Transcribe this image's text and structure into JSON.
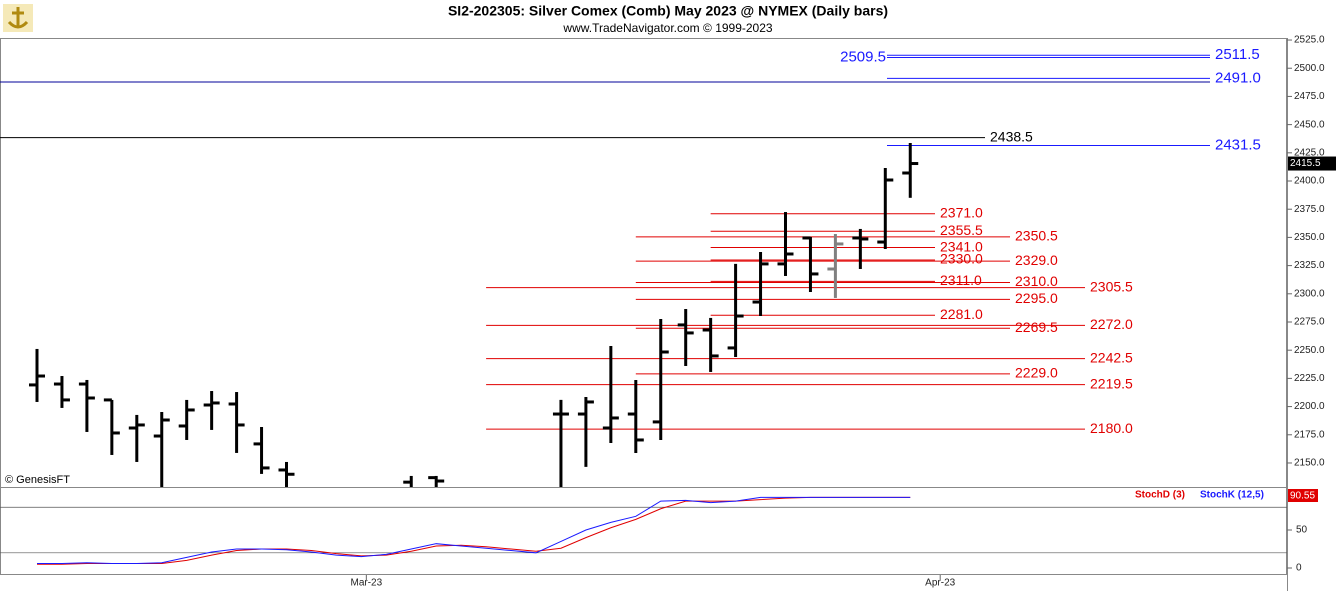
{
  "chart_data": [
    {
      "type": "ohlc",
      "title": "SI2-202305:  Silver Comex (Comb) May 2023 @ NYMEX  (Daily bars)",
      "subtitle": "www.TradeNavigator.com © 1999-2023",
      "annotations": [
        "© GenesisFT"
      ],
      "x": [
        0,
        1,
        2,
        3,
        4,
        5,
        6,
        7,
        8,
        9,
        10,
        15,
        16,
        21,
        22,
        23,
        24,
        25,
        26,
        27,
        28,
        29,
        30,
        31,
        32,
        33,
        34,
        35
      ],
      "open": [
        2219.2,
        2220.0,
        2220.0,
        2205.9,
        2181.0,
        2173.9,
        2182.8,
        2201.4,
        2202.3,
        2166.9,
        2143.8,
        2133,
        2137,
        2193.4,
        2193.4,
        2181.0,
        2193.4,
        2186.4,
        2272.4,
        2267.9,
        2252.0,
        2292.7,
        2326.5,
        2349.5,
        2322.0,
        2349.5,
        2345.9,
        2407.1
      ],
      "high": [
        2251.1,
        2227.1,
        2223.6,
        2205.9,
        2192.6,
        2195.2,
        2205.9,
        2213.8,
        2212.9,
        2181.9,
        2150.9,
        2138.5,
        2138.5,
        2205.9,
        2208.5,
        2253.7,
        2223.6,
        2277.7,
        2286.5,
        2278.6,
        2326.5,
        2337.1,
        2372.5,
        2350.4,
        2353.0,
        2357.5,
        2411.5,
        2433.7
      ],
      "low": [
        2204.1,
        2198.8,
        2177.5,
        2157.1,
        2150.9,
        2120,
        2170.4,
        2179.3,
        2158.9,
        2140.3,
        2120,
        2110,
        2115,
        2110,
        2146.5,
        2167.7,
        2158.9,
        2170.4,
        2236.0,
        2230.7,
        2244.0,
        2280.3,
        2315.8,
        2301.6,
        2296.3,
        2322.0,
        2339.7,
        2385.1
      ],
      "close": [
        2227.1,
        2205.9,
        2207.6,
        2176.6,
        2183.7,
        2188.1,
        2197.0,
        2203.2,
        2183.7,
        2145.6,
        2140,
        2125,
        2134,
        2193.4,
        2204.1,
        2189.9,
        2170.4,
        2248.4,
        2265.3,
        2244.9,
        2280.3,
        2326.5,
        2335.3,
        2317.6,
        2344.2,
        2348.6,
        2400.9,
        2415.5
      ],
      "close_label": "2415.5",
      "colors": [
        "#000",
        "#000",
        "#000",
        "#000",
        "#000",
        "#000",
        "#000",
        "#000",
        "#000",
        "#000",
        "#000",
        "#000",
        "#000",
        "#000",
        "#000",
        "#000",
        "#000",
        "#000",
        "#000",
        "#000",
        "#000",
        "#000",
        "#000",
        "#000",
        "#808080",
        "#000",
        "#000",
        "#000"
      ],
      "xlim": [
        -1.48,
        50.1
      ],
      "ylim": [
        2128.7,
        2526.8
      ],
      "yticks": [
        {
          "value": 2150,
          "label": "2150.0"
        },
        {
          "value": 2175,
          "label": "2175.0"
        },
        {
          "value": 2200,
          "label": "2200.0"
        },
        {
          "value": 2225,
          "label": "2225.0"
        },
        {
          "value": 2250,
          "label": "2250.0"
        },
        {
          "value": 2275,
          "label": "2275.0"
        },
        {
          "value": 2300,
          "label": "2300.0"
        },
        {
          "value": 2325,
          "label": "2325.0"
        },
        {
          "value": 2350,
          "label": "2350.0"
        },
        {
          "value": 2375,
          "label": "2375.0"
        },
        {
          "value": 2400,
          "label": "2400.0"
        },
        {
          "value": 2425,
          "label": "2425.0"
        },
        {
          "value": 2450,
          "label": "2450.0"
        },
        {
          "value": 2475,
          "label": "2475.0"
        },
        {
          "value": 2500,
          "label": "2500.0"
        },
        {
          "value": 2525,
          "label": "2525.0"
        }
      ],
      "levels": [
        {
          "color": "#e00000",
          "values": [
            2371.0,
            2355.5,
            2341.0,
            2330.0,
            2311.0,
            2281.0
          ],
          "value_labels": [
            "2371.0",
            "2355.5",
            "2341.0",
            "2330.0",
            "2311.0",
            "2281.0"
          ]
        },
        {
          "color": "#e00000",
          "values": [
            2350.5,
            2329.0,
            2310.0,
            2295.0,
            2269.5,
            2229.0
          ],
          "value_labels": [
            "2350.5",
            "2329.0",
            "2310.0",
            "2295.0",
            "2269.5",
            "2229.0"
          ]
        },
        {
          "color": "#e00000",
          "values": [
            2305.5,
            2272.0,
            2242.5,
            2219.5,
            2180.0
          ],
          "value_labels": [
            "2305.5",
            "2272.0",
            "2242.5",
            "2219.5",
            "2180.0"
          ]
        },
        {
          "color": "#1a1aff",
          "values": [
            2511.5,
            2509.5,
            2491.0,
            2431.5
          ],
          "value_labels": [
            "2511.5",
            "2509.5",
            "2491.0",
            "2431.5"
          ]
        },
        {
          "color": "#000",
          "values": [
            2438.5
          ],
          "value_labels": [
            "2438.5"
          ]
        },
        {
          "color": "#00009a",
          "values": [
            2487.8
          ]
        }
      ]
    },
    {
      "type": "line",
      "x": [
        0,
        1,
        2,
        3,
        4,
        5,
        6,
        7,
        8,
        9,
        10,
        11,
        12,
        13,
        14,
        15,
        16,
        17,
        18,
        19,
        20,
        21,
        22,
        23,
        24,
        25,
        26,
        27,
        28,
        29,
        30,
        31,
        32,
        33,
        34,
        35
      ],
      "series": [
        {
          "name": "StochD (3)",
          "color": "#e00000",
          "values": [
            5,
            5,
            6,
            6,
            6,
            6,
            10,
            17,
            23,
            25,
            25,
            23,
            19,
            16,
            17,
            22,
            29,
            30,
            28,
            25,
            22,
            26,
            40,
            53,
            64,
            78,
            88,
            88,
            88,
            90,
            92,
            93,
            93,
            93,
            93,
            93
          ]
        },
        {
          "name": "StochK (12,5)",
          "color": "#1a1aff",
          "values": [
            6,
            6,
            7,
            6,
            6,
            7,
            14,
            21,
            25,
            25,
            24,
            21,
            17,
            15,
            18,
            25,
            32,
            29,
            26,
            23,
            20,
            35,
            50,
            60,
            68,
            88,
            89,
            86,
            88,
            93,
            93,
            93,
            93,
            93,
            93,
            93
          ]
        }
      ],
      "last_label": "90.55",
      "levels": [
        80,
        20
      ],
      "ylim": [
        -9.2,
        106.6
      ],
      "yticks": [
        0,
        50
      ],
      "xticks": [
        {
          "value": 13.2,
          "label": "Mar-23"
        },
        {
          "value": 36.2,
          "label": "Apr-23"
        }
      ]
    }
  ]
}
